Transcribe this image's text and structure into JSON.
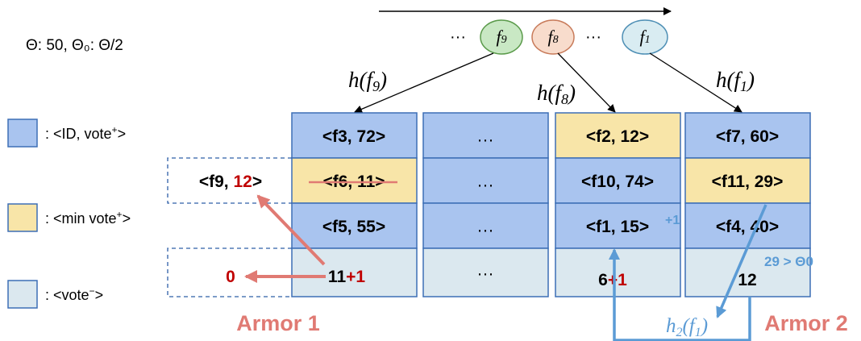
{
  "params": {
    "theta_label": "Θ: 50, Θ₀: Θ/2"
  },
  "flow": {
    "dots_left": "···",
    "dots_mid": "···",
    "nodes": [
      {
        "id": "f9",
        "fill": "#c9e8c4",
        "stroke": "#5a9a4a"
      },
      {
        "id": "f8",
        "fill": "#f8dccc",
        "stroke": "#c87b5a"
      },
      {
        "id": "f1",
        "fill": "#d9ecf2",
        "stroke": "#4e8fb5"
      }
    ]
  },
  "hash_labels": [
    "h(f9)",
    "h(f8)",
    "h(f1)"
  ],
  "legend": [
    {
      "label": ": <ID, vote⁺>",
      "color": "#a9c4ef"
    },
    {
      "label": ": <min vote⁺>",
      "color": "#f8e5a8"
    },
    {
      "label": ": <vote⁻>",
      "color": "#dbe8ef"
    }
  ],
  "buckets": {
    "col1": {
      "r1": "<f3, 72>",
      "r2": "<f6, 11>",
      "r3": "<f5, 55>",
      "neg": "11",
      "neg_inc": "+1"
    },
    "col2": {
      "dots": "···"
    },
    "col3": {
      "r1": "<f2, 12>",
      "r2": "<f10, 74>",
      "r3": "<f1, 15>",
      "r3_inc": "+1",
      "neg": "6",
      "neg_inc": "+1"
    },
    "col4": {
      "r1": "<f7, 60>",
      "r2": "<f11, 29>",
      "r3": "<f4, 40>",
      "neg": "12",
      "cond": "29 > Θ0"
    }
  },
  "evicted": {
    "new_entry_id": "<f9, ",
    "new_entry_vote": "12",
    "new_entry_close": ">",
    "neg_reset": "0"
  },
  "h2_label": "h2(f1)",
  "armors": [
    "Armor 1",
    "Armor 2"
  ]
}
